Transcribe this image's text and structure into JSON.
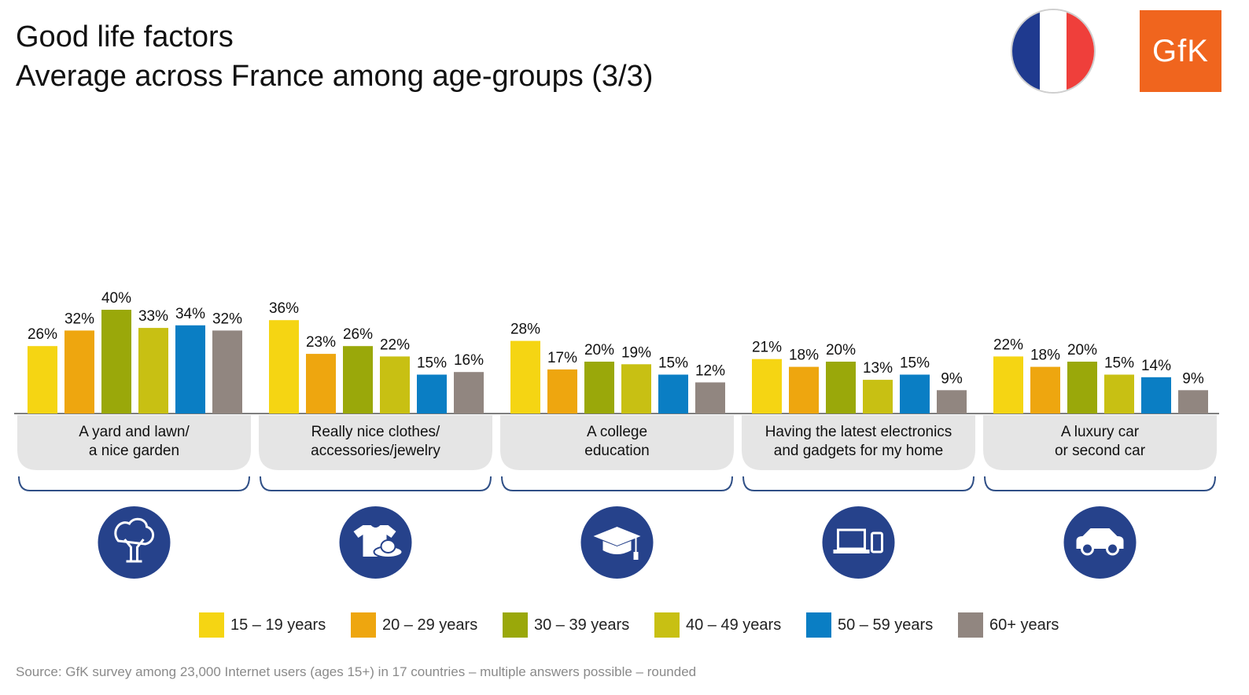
{
  "header": {
    "title_line1": "Good life factors",
    "title_line2": "Average across France among age-groups (3/3)",
    "logo_text": "GfK"
  },
  "flag": {
    "colors": [
      "#1f3a8f",
      "#ffffff",
      "#ef3f3b"
    ],
    "name": "france-flag-icon"
  },
  "colors": {
    "series": [
      "#f5d513",
      "#eea60f",
      "#9aa80a",
      "#c8c013",
      "#0a7ec4",
      "#918680"
    ],
    "label_box": "#e5e5e5",
    "bracket": "#2f4f86",
    "icon_circle": "#26428b"
  },
  "chart_data": {
    "type": "bar",
    "categories": [
      "A yard and lawn/\na nice garden",
      "Really nice clothes/\naccessories/jewelry",
      "A college\neducation",
      "Having the latest electronics\nand gadgets for my home",
      "A luxury car\nor second car"
    ],
    "category_icons": [
      "tree-icon",
      "clothes-icon",
      "graduation-cap-icon",
      "laptop-phone-icon",
      "car-icon"
    ],
    "series": [
      {
        "name": "15 – 19 years",
        "values": [
          26,
          36,
          28,
          21,
          22
        ]
      },
      {
        "name": "20 – 29 years",
        "values": [
          32,
          23,
          17,
          18,
          18
        ]
      },
      {
        "name": "30 – 39 years",
        "values": [
          40,
          26,
          20,
          20,
          20
        ]
      },
      {
        "name": "40 – 49 years",
        "values": [
          33,
          22,
          19,
          13,
          15
        ]
      },
      {
        "name": "50 – 59 years",
        "values": [
          34,
          15,
          15,
          15,
          14
        ]
      },
      {
        "name": "60+ years",
        "values": [
          32,
          16,
          12,
          9,
          9
        ]
      }
    ],
    "value_suffix": "%",
    "ylim": [
      0,
      45
    ],
    "grid": false,
    "legend_position": "bottom"
  },
  "footer": {
    "source": "Source: GfK survey among 23,000 Internet users (ages 15+) in 17 countries – multiple answers possible – rounded"
  }
}
